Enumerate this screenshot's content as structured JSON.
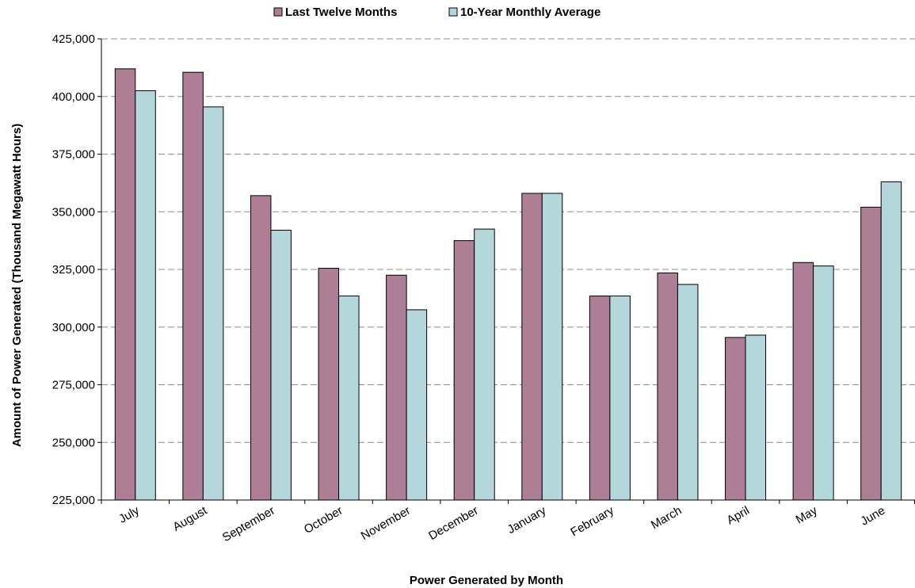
{
  "chart_data": {
    "type": "bar",
    "title": "",
    "xlabel": "Power Generated by Month",
    "ylabel": "Amount of Power Generated (Thousand Megawatt Hours)",
    "categories": [
      "July",
      "August",
      "September",
      "October",
      "November",
      "December",
      "January",
      "February",
      "March",
      "April",
      "May",
      "June"
    ],
    "series": [
      {
        "name": "Last Twelve Months",
        "color": "#ae7f94",
        "values": [
          412000,
          410500,
          357000,
          325500,
          322500,
          337500,
          358000,
          313500,
          323500,
          295500,
          328000,
          352000
        ]
      },
      {
        "name": "10-Year Monthly Average",
        "color": "#b4d7dc",
        "values": [
          402500,
          395500,
          342000,
          313500,
          307500,
          342500,
          358000,
          313500,
          318500,
          296500,
          326500,
          363000
        ]
      }
    ],
    "ylim": [
      225000,
      425000
    ],
    "yticks": [
      225000,
      250000,
      275000,
      300000,
      325000,
      350000,
      375000,
      400000,
      425000
    ],
    "ytick_labels": [
      "225,000",
      "250,000",
      "275,000",
      "300,000",
      "325,000",
      "350,000",
      "375,000",
      "400,000",
      "425,000"
    ],
    "grid": true,
    "legend_position": "top-center"
  }
}
